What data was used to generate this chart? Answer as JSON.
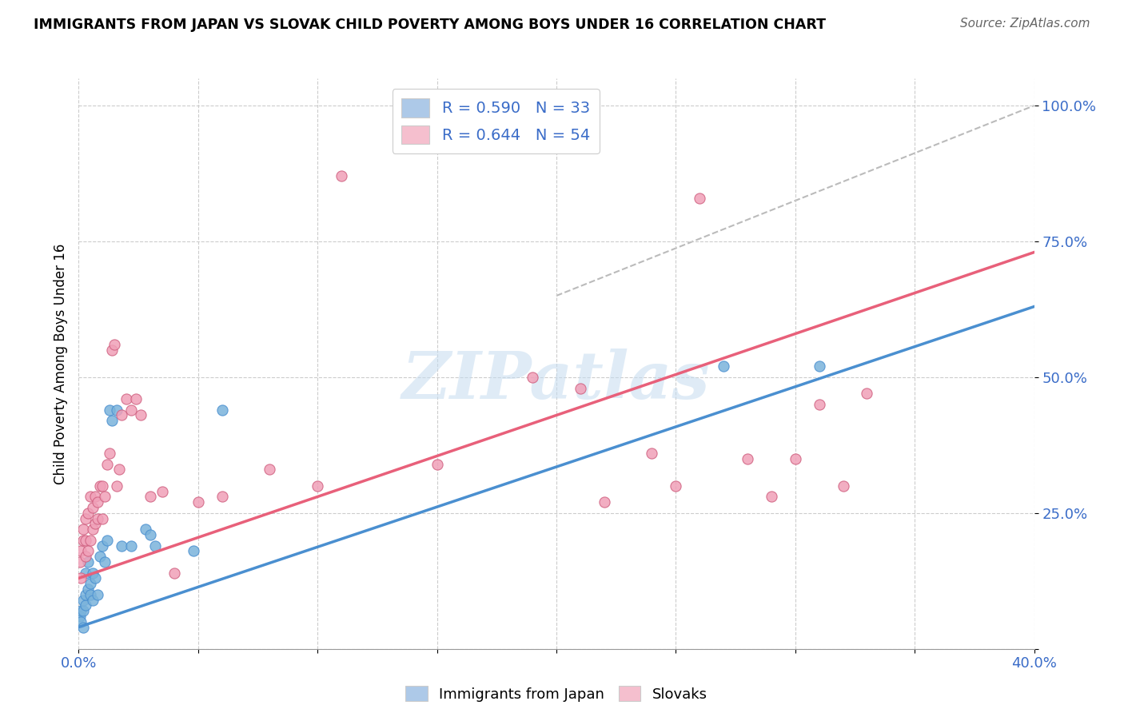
{
  "title": "IMMIGRANTS FROM JAPAN VS SLOVAK CHILD POVERTY AMONG BOYS UNDER 16 CORRELATION CHART",
  "source": "Source: ZipAtlas.com",
  "ylabel": "Child Poverty Among Boys Under 16",
  "xlim": [
    0.0,
    0.4
  ],
  "ylim": [
    0.0,
    1.05
  ],
  "watermark": "ZIPatlas",
  "legend_entries": [
    {
      "label": "R = 0.590   N = 33",
      "color": "#adc9e8"
    },
    {
      "label": "R = 0.644   N = 54",
      "color": "#f5bfce"
    }
  ],
  "ytick_positions": [
    0.0,
    0.25,
    0.5,
    0.75,
    1.0
  ],
  "ytick_labels": [
    "",
    "25.0%",
    "50.0%",
    "75.0%",
    "100.0%"
  ],
  "xtick_positions": [
    0.0,
    0.05,
    0.1,
    0.15,
    0.2,
    0.25,
    0.3,
    0.35,
    0.4
  ],
  "japan_scatter_x": [
    0.0005,
    0.001,
    0.001,
    0.002,
    0.002,
    0.002,
    0.003,
    0.003,
    0.003,
    0.004,
    0.004,
    0.005,
    0.005,
    0.006,
    0.006,
    0.007,
    0.008,
    0.009,
    0.01,
    0.011,
    0.012,
    0.013,
    0.014,
    0.016,
    0.018,
    0.022,
    0.028,
    0.03,
    0.032,
    0.048,
    0.06,
    0.27,
    0.31
  ],
  "japan_scatter_y": [
    0.06,
    0.05,
    0.07,
    0.04,
    0.07,
    0.09,
    0.08,
    0.1,
    0.14,
    0.11,
    0.16,
    0.1,
    0.12,
    0.09,
    0.14,
    0.13,
    0.1,
    0.17,
    0.19,
    0.16,
    0.2,
    0.44,
    0.42,
    0.44,
    0.19,
    0.19,
    0.22,
    0.21,
    0.19,
    0.18,
    0.44,
    0.52,
    0.52
  ],
  "japan_trend_x": [
    0.0,
    0.4
  ],
  "japan_trend_y": [
    0.04,
    0.63
  ],
  "japan_trend_color": "#4a8fd0",
  "japan_color": "#7ab3db",
  "japan_edge_color": "#4a8fd0",
  "slovak_scatter_x": [
    0.0005,
    0.001,
    0.001,
    0.002,
    0.002,
    0.003,
    0.003,
    0.003,
    0.004,
    0.004,
    0.005,
    0.005,
    0.006,
    0.006,
    0.007,
    0.007,
    0.008,
    0.008,
    0.009,
    0.01,
    0.01,
    0.011,
    0.012,
    0.013,
    0.014,
    0.015,
    0.016,
    0.017,
    0.018,
    0.02,
    0.022,
    0.024,
    0.026,
    0.03,
    0.035,
    0.04,
    0.05,
    0.06,
    0.08,
    0.1,
    0.11,
    0.15,
    0.19,
    0.21,
    0.22,
    0.24,
    0.25,
    0.26,
    0.28,
    0.29,
    0.3,
    0.31,
    0.32,
    0.33
  ],
  "slovak_scatter_y": [
    0.16,
    0.13,
    0.18,
    0.2,
    0.22,
    0.17,
    0.2,
    0.24,
    0.18,
    0.25,
    0.2,
    0.28,
    0.22,
    0.26,
    0.23,
    0.28,
    0.24,
    0.27,
    0.3,
    0.24,
    0.3,
    0.28,
    0.34,
    0.36,
    0.55,
    0.56,
    0.3,
    0.33,
    0.43,
    0.46,
    0.44,
    0.46,
    0.43,
    0.28,
    0.29,
    0.14,
    0.27,
    0.28,
    0.33,
    0.3,
    0.87,
    0.34,
    0.5,
    0.48,
    0.27,
    0.36,
    0.3,
    0.83,
    0.35,
    0.28,
    0.35,
    0.45,
    0.3,
    0.47
  ],
  "slovak_trend_x": [
    0.0,
    0.4
  ],
  "slovak_trend_y": [
    0.13,
    0.73
  ],
  "slovak_trend_color": "#e8607a",
  "slovak_color": "#f0a0b8",
  "slovak_edge_color": "#d06080",
  "ref_line_x": [
    0.2,
    0.4
  ],
  "ref_line_y": [
    0.65,
    1.0
  ],
  "ref_line_color": "#bbbbbb",
  "ref_line_style": "--"
}
